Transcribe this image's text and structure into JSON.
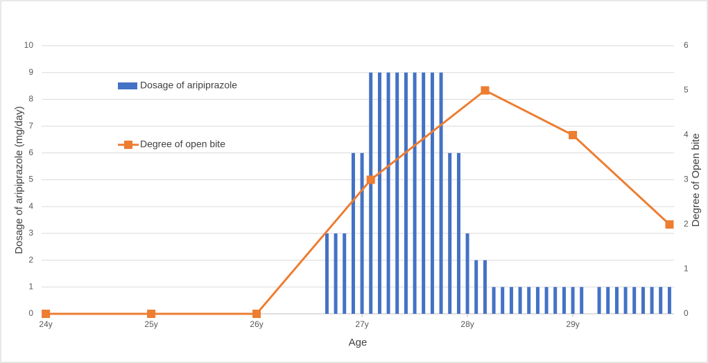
{
  "chart_data": {
    "type": "combo",
    "x_label": "Age",
    "y_label": "Dosage of aripiprazole (mg/day)",
    "y2_label": "Degree of Open bite",
    "xlim": [
      23.96,
      29.96
    ],
    "xticks": [
      {
        "value": 24,
        "label": "24y"
      },
      {
        "value": 25,
        "label": "25y"
      },
      {
        "value": 26,
        "label": "26y"
      },
      {
        "value": 27,
        "label": "27y"
      },
      {
        "value": 28,
        "label": "28y"
      },
      {
        "value": 29,
        "label": "29y"
      }
    ],
    "ylim": [
      0,
      10
    ],
    "yticks": [
      0,
      1,
      2,
      3,
      4,
      5,
      6,
      7,
      8,
      9,
      10
    ],
    "y2lim": [
      0,
      6
    ],
    "y2ticks": [
      0,
      1,
      2,
      3,
      4,
      5,
      6
    ],
    "grid": true,
    "legend": "upper left",
    "series": [
      {
        "name": "Dosage of aripiprazole",
        "type": "bar",
        "color": "#4472c4",
        "x": [
          26.667,
          26.75,
          26.833,
          26.917,
          27,
          27.083,
          27.167,
          27.25,
          27.333,
          27.417,
          27.5,
          27.583,
          27.667,
          27.75,
          27.833,
          27.917,
          28,
          28.083,
          28.167,
          28.25,
          28.333,
          28.417,
          28.5,
          28.583,
          28.667,
          28.75,
          28.833,
          28.917,
          29,
          29.083,
          29.167,
          29.25,
          29.333,
          29.417,
          29.5,
          29.583,
          29.667,
          29.75,
          29.833,
          29.917
        ],
        "values": [
          3,
          3,
          3,
          6,
          6,
          9,
          9,
          9,
          9,
          9,
          9,
          9,
          9,
          9,
          6,
          6,
          3,
          2,
          2,
          1,
          1,
          1,
          1,
          1,
          1,
          1,
          1,
          1,
          1,
          1,
          null,
          1,
          1,
          1,
          1,
          1,
          1,
          1,
          1,
          1
        ]
      },
      {
        "name": "Degree of open bite",
        "type": "line",
        "axis": "y2",
        "color": "#ed7d31",
        "x": [
          24,
          25,
          26,
          27.083,
          28.167,
          29,
          29.917
        ],
        "values": [
          0,
          0,
          0,
          3,
          5,
          4,
          2
        ]
      }
    ]
  }
}
